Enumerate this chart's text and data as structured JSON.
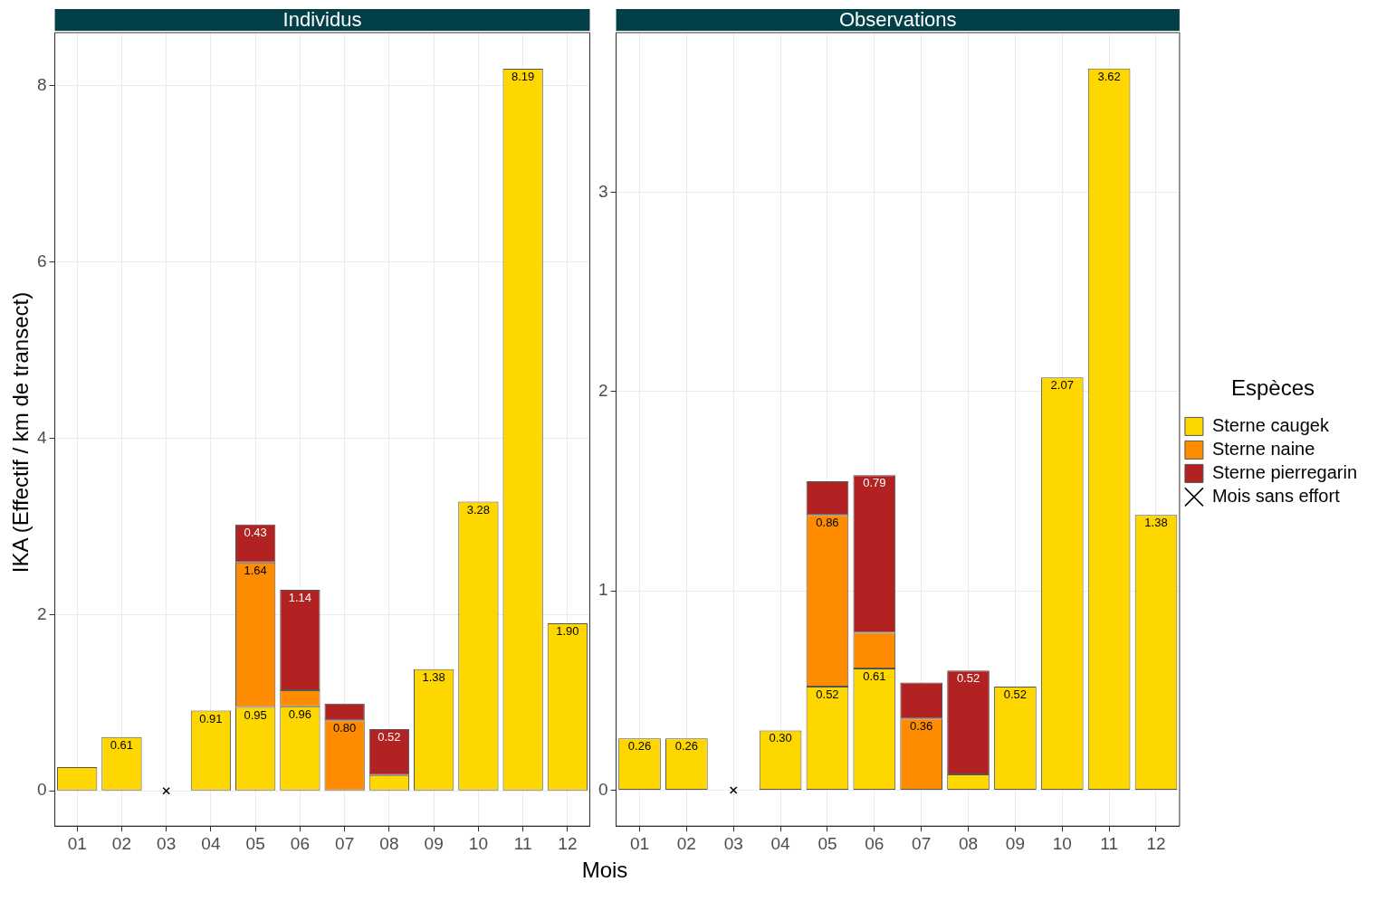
{
  "chart_data": [
    {
      "type": "bar",
      "title": "Individus",
      "ylabel": "IKA (Effectif / km de transect)",
      "xlabel": "Mois",
      "stacked": true,
      "grid": true,
      "categories": [
        "01",
        "02",
        "03",
        "04",
        "05",
        "06",
        "07",
        "08",
        "09",
        "10",
        "11",
        "12"
      ],
      "ylim": [
        -0.4,
        8.6
      ],
      "yticks": [
        0,
        2,
        4,
        6,
        8
      ],
      "series": [
        {
          "color": "#ffd700",
          "values": [
            0.27,
            0.61,
            null,
            0.91,
            0.95,
            0.96,
            null,
            0.18,
            1.38,
            3.28,
            8.19,
            1.9
          ],
          "value_labels": [
            null,
            "0.61",
            null,
            "0.91",
            "0.95",
            "0.96",
            null,
            null,
            "1.38",
            "3.28",
            "8.19",
            "1.90"
          ]
        },
        {
          "color": "#ff8c00",
          "values": [
            null,
            null,
            null,
            null,
            1.64,
            0.18,
            0.8,
            null,
            null,
            null,
            null,
            null
          ],
          "value_labels": [
            null,
            null,
            null,
            null,
            "1.64",
            null,
            "0.80",
            null,
            null,
            null,
            null,
            null
          ]
        },
        {
          "color": "#b22222",
          "values": [
            null,
            null,
            null,
            null,
            0.43,
            1.14,
            0.19,
            0.52,
            null,
            null,
            null,
            null
          ],
          "value_labels": [
            null,
            null,
            null,
            null,
            "0.43",
            "1.14",
            null,
            "0.52",
            null,
            null,
            null,
            null
          ]
        },
        {
          "type": "scatter",
          "marker": "cross",
          "color": "#000000",
          "x": [
            "03"
          ],
          "values": [
            0
          ]
        }
      ]
    },
    {
      "type": "bar",
      "title": "Observations",
      "stacked": true,
      "grid": true,
      "legend": "right",
      "legend_title": "Espèces",
      "categories": [
        "01",
        "02",
        "03",
        "04",
        "05",
        "06",
        "07",
        "08",
        "09",
        "10",
        "11",
        "12"
      ],
      "ylim": [
        -0.18,
        3.8
      ],
      "yticks": [
        0,
        1,
        2,
        3
      ],
      "series": [
        {
          "name": "Sterne caugek",
          "color": "#ffd700",
          "values": [
            0.26,
            0.26,
            null,
            0.3,
            0.52,
            0.61,
            null,
            0.08,
            0.52,
            2.07,
            3.62,
            1.38
          ],
          "value_labels": [
            "0.26",
            "0.26",
            null,
            "0.30",
            "0.52",
            "0.61",
            null,
            null,
            "0.52",
            "2.07",
            "3.62",
            "1.38"
          ]
        },
        {
          "name": "Sterne naine",
          "color": "#ff8c00",
          "values": [
            null,
            null,
            null,
            null,
            0.86,
            0.18,
            0.36,
            null,
            null,
            null,
            null,
            null
          ],
          "value_labels": [
            null,
            null,
            null,
            null,
            "0.86",
            null,
            "0.36",
            null,
            null,
            null,
            null,
            null
          ]
        },
        {
          "name": "Sterne pierregarin",
          "color": "#b22222",
          "values": [
            null,
            null,
            null,
            null,
            0.17,
            0.79,
            0.18,
            0.52,
            null,
            null,
            null,
            null
          ],
          "value_labels": [
            null,
            null,
            null,
            null,
            null,
            "0.79",
            null,
            "0.52",
            null,
            null,
            null,
            null
          ]
        },
        {
          "name": "Mois sans effort",
          "type": "scatter",
          "marker": "cross",
          "color": "#000000",
          "x": [
            "03"
          ],
          "values": [
            0
          ]
        }
      ]
    }
  ]
}
